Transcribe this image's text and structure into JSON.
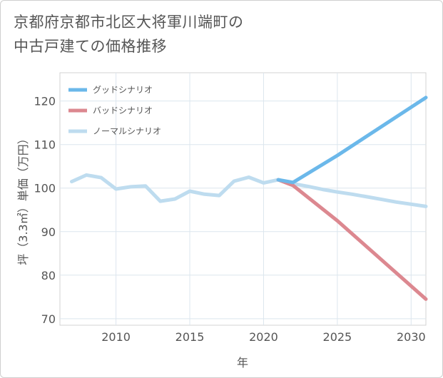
{
  "title": "京都府京都市北区大将軍川端町の\n中古戸建ての価格推移",
  "chart_data": {
    "type": "line",
    "title": "京都府京都市北区大将軍川端町の中古戸建ての価格推移",
    "xlabel": "年",
    "ylabel": "坪（3.3㎡）単価（万円）",
    "xlim": [
      2006.2,
      2031
    ],
    "ylim": [
      68.5,
      126.5
    ],
    "xticks": [
      2010,
      2015,
      2020,
      2025,
      2030
    ],
    "yticks": [
      70,
      80,
      90,
      100,
      110,
      120
    ],
    "legend_position": "top-left",
    "series": [
      {
        "name": "グッドシナリオ",
        "color": "#6bb8ea",
        "x": [
          2021,
          2022,
          2025,
          2031
        ],
        "y": [
          101.9,
          101.3,
          107.5,
          120.8
        ]
      },
      {
        "name": "バッドシナリオ",
        "color": "#dc8890",
        "x": [
          2021,
          2022,
          2025,
          2031
        ],
        "y": [
          101.9,
          100.6,
          92.5,
          74.5
        ]
      },
      {
        "name": "ノーマルシナリオ",
        "color": "#bedcef",
        "x": [
          2007,
          2008,
          2009,
          2010,
          2011,
          2012,
          2013,
          2014,
          2015,
          2016,
          2017,
          2018,
          2019,
          2020,
          2021,
          2022,
          2023,
          2024,
          2025,
          2026,
          2027,
          2028,
          2029,
          2030,
          2031
        ],
        "y": [
          101.5,
          103.0,
          102.4,
          99.8,
          100.3,
          100.5,
          97.0,
          97.5,
          99.3,
          98.6,
          98.3,
          101.6,
          102.5,
          101.2,
          101.9,
          101.0,
          100.4,
          99.7,
          99.1,
          98.6,
          98.0,
          97.4,
          96.8,
          96.3,
          95.8
        ]
      }
    ]
  }
}
